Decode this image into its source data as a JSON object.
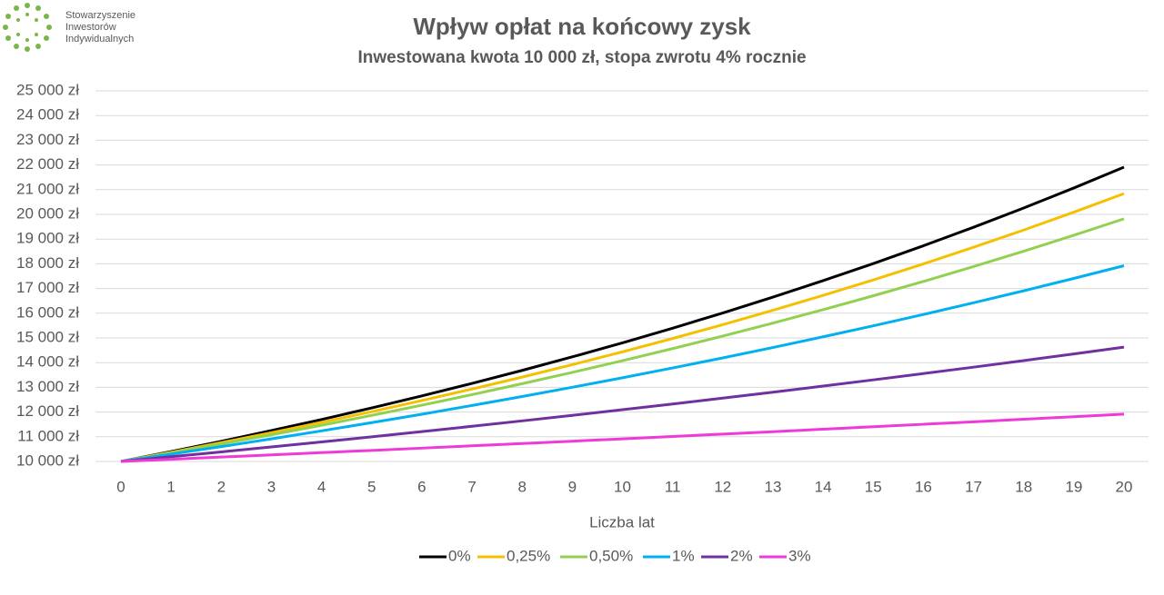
{
  "logo": {
    "lines": [
      "Stowarzyszenie",
      "Inwestorów",
      "Indywidualnych"
    ]
  },
  "chart_data": {
    "type": "line",
    "title": "Wpływ opłat na końcowy zysk",
    "subtitle": "Inwestowana kwota 10 000 zł, stopa zwrotu 4% rocznie",
    "x_label": "Liczba lat",
    "x": [
      0,
      1,
      2,
      3,
      4,
      5,
      6,
      7,
      8,
      9,
      10,
      11,
      12,
      13,
      14,
      15,
      16,
      17,
      18,
      19,
      20
    ],
    "xlim": [
      0,
      20
    ],
    "xticks": [
      0,
      1,
      2,
      3,
      4,
      5,
      6,
      7,
      8,
      9,
      10,
      11,
      12,
      13,
      14,
      15,
      16,
      17,
      18,
      19,
      20
    ],
    "ylim": [
      10000,
      25000
    ],
    "yticks": [
      {
        "value": 10000,
        "label": "10 000 zł"
      },
      {
        "value": 11000,
        "label": "11 000 zł"
      },
      {
        "value": 12000,
        "label": "12 000 zł"
      },
      {
        "value": 13000,
        "label": "13 000 zł"
      },
      {
        "value": 14000,
        "label": "14 000 zł"
      },
      {
        "value": 15000,
        "label": "15 000 zł"
      },
      {
        "value": 16000,
        "label": "16 000 zł"
      },
      {
        "value": 17000,
        "label": "17 000 zł"
      },
      {
        "value": 18000,
        "label": "18 000 zł"
      },
      {
        "value": 19000,
        "label": "19 000 zł"
      },
      {
        "value": 20000,
        "label": "20 000 zł"
      },
      {
        "value": 21000,
        "label": "21 000 zł"
      },
      {
        "value": 22000,
        "label": "22 000 zł"
      },
      {
        "value": 23000,
        "label": "23 000 zł"
      },
      {
        "value": 24000,
        "label": "24 000 zł"
      },
      {
        "value": 25000,
        "label": "25 000 zł"
      }
    ],
    "grid": true,
    "legend": "bottom",
    "series": [
      {
        "name": "0%",
        "color": "#000000",
        "values": [
          10000,
          10400,
          10816,
          11249,
          11699,
          12167,
          12653,
          13159,
          13686,
          14233,
          14802,
          15395,
          16010,
          16651,
          17317,
          18009,
          18730,
          19479,
          20258,
          21068,
          21911
        ]
      },
      {
        "name": "0,25%",
        "color": "#f5c000",
        "values": [
          10000,
          10374,
          10762,
          11165,
          11582,
          12016,
          12465,
          12931,
          13415,
          13917,
          14437,
          14977,
          15537,
          16118,
          16721,
          17346,
          17995,
          18668,
          19366,
          20090,
          20842
        ]
      },
      {
        "name": "0,50%",
        "color": "#92d050",
        "values": [
          10000,
          10348,
          10708,
          11081,
          11466,
          11865,
          12278,
          12705,
          13147,
          13605,
          14078,
          14568,
          15075,
          15600,
          16143,
          16705,
          17286,
          17888,
          18510,
          19155,
          19821
        ]
      },
      {
        "name": "1%",
        "color": "#00b0f0",
        "values": [
          10000,
          10296,
          10601,
          10915,
          11238,
          11571,
          11913,
          12266,
          12629,
          13003,
          13388,
          13784,
          14192,
          14612,
          15045,
          15490,
          15949,
          16421,
          16907,
          17408,
          17923
        ]
      },
      {
        "name": "2%",
        "color": "#7030a0",
        "values": [
          10000,
          10192,
          10388,
          10587,
          10791,
          10997,
          11208,
          11424,
          11643,
          11867,
          12095,
          12327,
          12564,
          12805,
          13051,
          13302,
          13557,
          13817,
          14082,
          14353,
          14628
        ]
      },
      {
        "name": "3%",
        "color": "#ee3ad8",
        "values": [
          10000,
          10088,
          10177,
          10266,
          10357,
          10448,
          10540,
          10633,
          10726,
          10820,
          10916,
          11012,
          11109,
          11206,
          11305,
          11405,
          11505,
          11606,
          11708,
          11811,
          11915
        ]
      }
    ]
  }
}
